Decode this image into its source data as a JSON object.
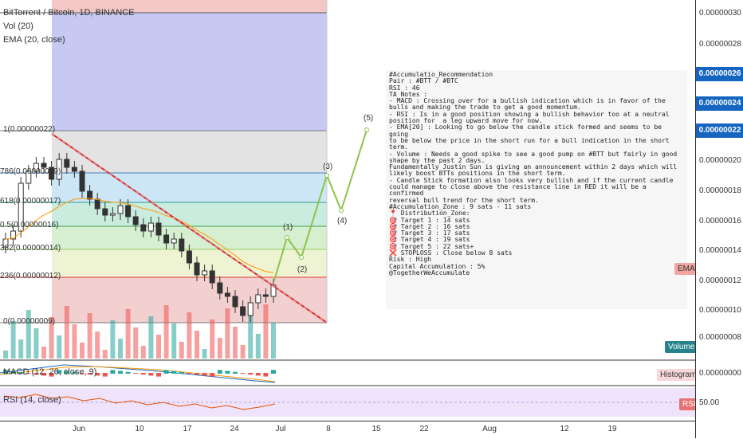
{
  "legend": {
    "symbol": "BitTorrent / Bitcoin, 1D, BINANCE",
    "volume": "Vol (20)",
    "ema": "EMA (20, close)"
  },
  "fib_labels": [
    "1(0.00000022)",
    "786(0.00000019)",
    "618(0.00000017)",
    "0.5(0.00000016)",
    "382(0.00000014)",
    "236(0.00000012)",
    "0(0.00000009)"
  ],
  "price_axis": {
    "ticks": [
      "0.00000030",
      "0.00000028",
      "0.00000020",
      "0.00000018",
      "0.00000016",
      "0.00000014",
      "0.00000012",
      "0.00000010",
      "0.00000008",
      "0.00000000",
      "50.00"
    ],
    "badges": [
      "0.00000026",
      "0.00000024",
      "0.00000022"
    ],
    "badge_color": "#1565c0"
  },
  "pane_labels": {
    "ema": "EMA",
    "volume": "Volume",
    "histogram": "Histogram",
    "rsi": "RSI"
  },
  "time_axis": [
    "Jun",
    "10",
    "17",
    "24",
    "Jul",
    "8",
    "15",
    "22",
    "Aug",
    "12",
    "19"
  ],
  "indicators": {
    "macd": "MACD (12, 26, close, 9)",
    "rsi": "RSI (14, close)"
  },
  "waves": [
    "(1)",
    "(2)",
    "(3)",
    "(4)",
    "(5)"
  ],
  "note_lines": [
    "#Accumulatio_Recommendation",
    "Pair : #BTT / #BTC",
    "RSI : 46",
    "TA Notes :",
    "- MACD : Crossing over for a bullish indication which is in favor of the",
    "bulls and making the trade to get a good momentum.",
    "- RSI : Is in a good position showing a bullish behavior too at a neutral",
    "position for  a leg upward move for now.",
    "- EMA[20] : Looking to go below the candle stick formed and seems to be going",
    "to be below the price in the short run for a bull indication in the short",
    "term.",
    "- Volume : Needs a good spike to see a good pump on #BTT but fairly in good",
    "shape by the past 2 days.",
    "Fundamentally Justin Sun is giving an announcement within 2 days which will",
    "likely boost BTTs positions in the short term.",
    "- Candle Stick formation also looks very bullish and if the current candle",
    "could manage to close above the resistance line in RED it will be a confirmed",
    "reversal bull trend for the short term.",
    "#Accumulation_Zone : 9 sats - 11 sats",
    "📍 Distribution_Zone:",
    "🎯 Target 1 : 14 sats",
    "🎯 Target 2 : 16 sats",
    "🎯 Target 3 : 17 sats",
    "🎯 Target 4 : 19 sats",
    "🎯 Target 5 : 22 sats+",
    "❌ STOPLOSS : Close below 8 sats",
    "Risk : High",
    "Capital Accumulation : 5%",
    "@TogetherWeAccumulate"
  ],
  "colors": {
    "candle": "#333333",
    "trendline": "#d32f2f",
    "ema": "#ff9800",
    "wave": "#8bc34a",
    "volume": "#26a69a",
    "volume_down": "#ef5350"
  }
}
